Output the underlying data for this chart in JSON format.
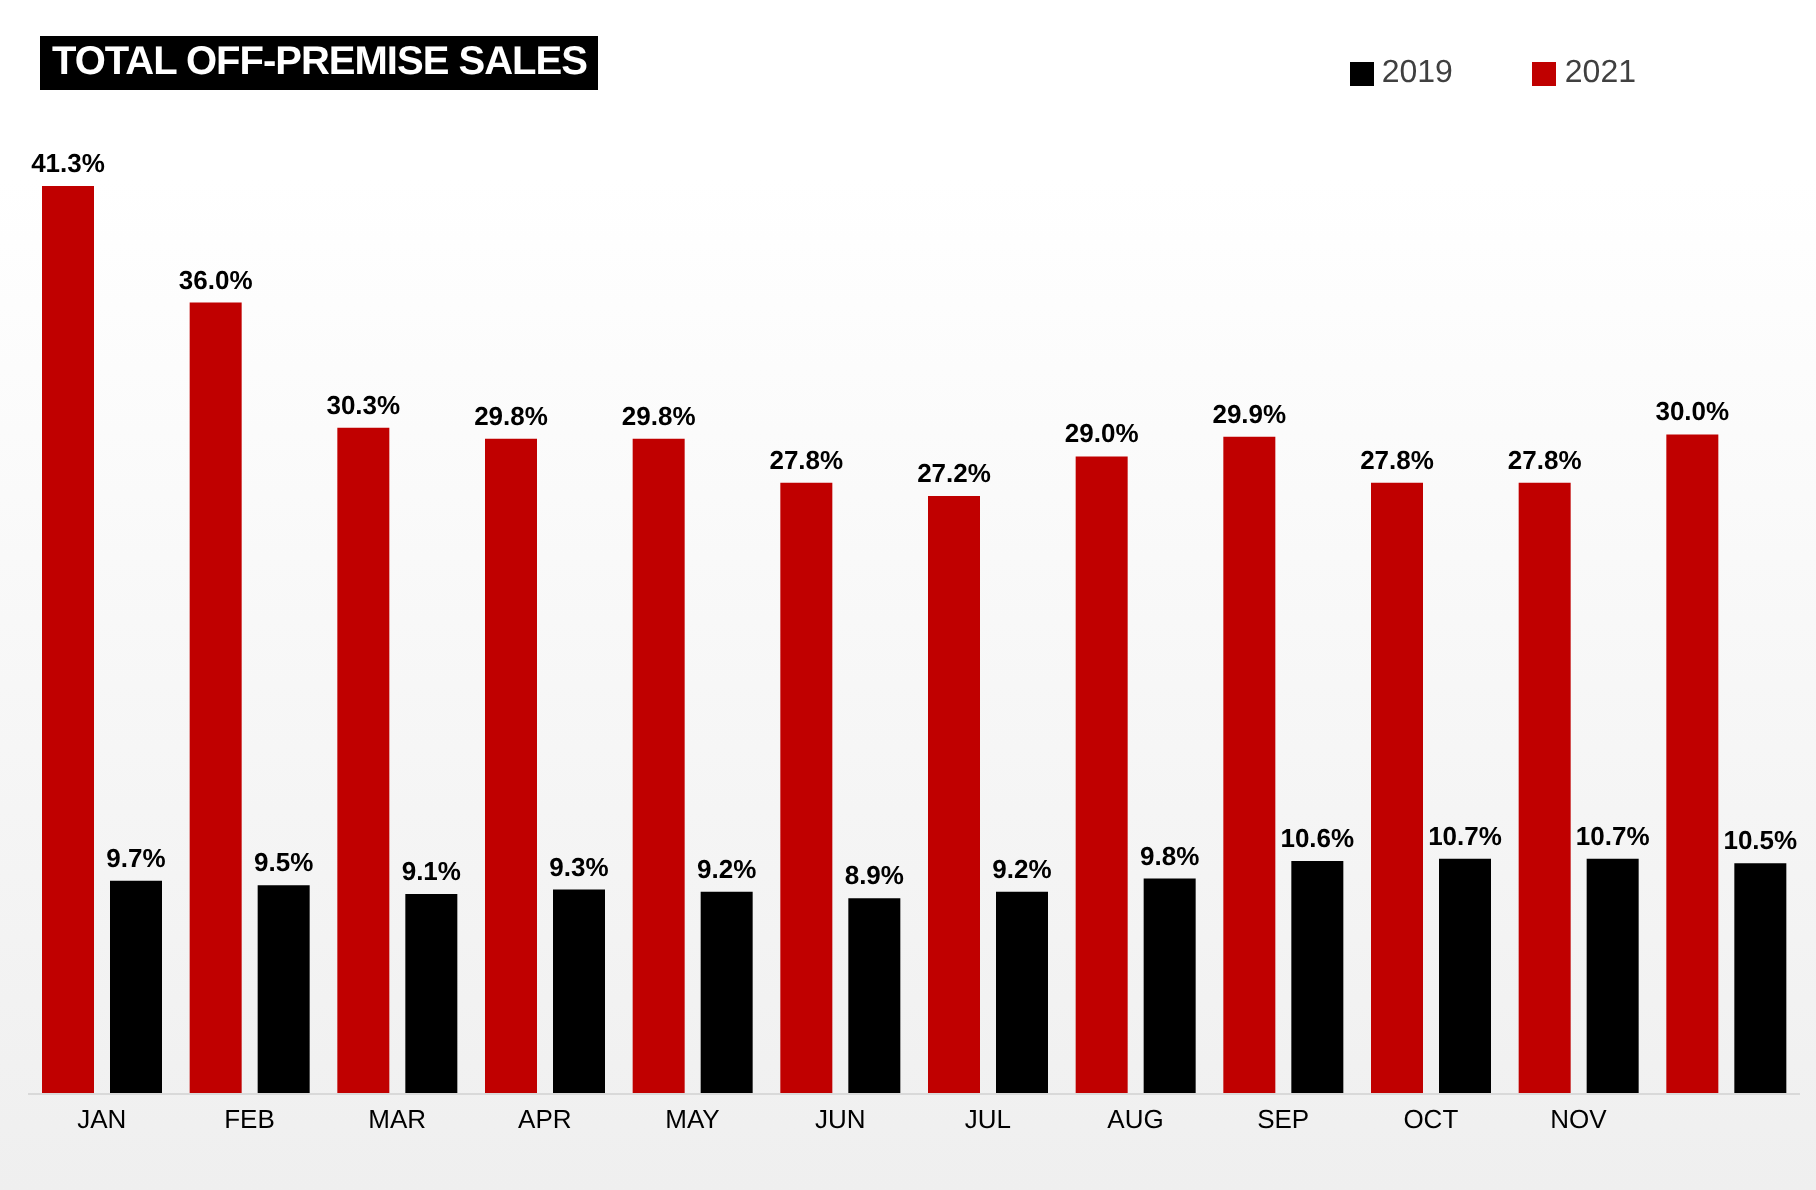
{
  "chart_data": {
    "type": "bar",
    "title": "TOTAL OFF-PREMISE SALES",
    "categories": [
      "JAN",
      "FEB",
      "MAR",
      "APR",
      "MAY",
      "JUN",
      "JUL",
      "AUG",
      "SEP",
      "OCT",
      "NOV",
      null
    ],
    "series": [
      {
        "name": "2021",
        "color": "#c00000",
        "values": [
          41.3,
          36.0,
          30.3,
          29.8,
          29.8,
          27.8,
          27.2,
          29.0,
          29.9,
          27.8,
          27.8,
          30.0
        ],
        "value_labels": [
          "41.3%",
          "36.0%",
          "30.3%",
          "29.8%",
          "29.8%",
          "27.8%",
          "27.2%",
          "29.0%",
          "29.9%",
          "27.8%",
          "27.8%",
          "30.0%"
        ]
      },
      {
        "name": "2019",
        "color": "#000000",
        "values": [
          9.7,
          9.5,
          9.1,
          9.3,
          9.2,
          8.9,
          9.2,
          9.8,
          10.6,
          10.7,
          10.7,
          10.5
        ],
        "value_labels": [
          "9.7%",
          "9.5%",
          "9.1%",
          "9.3%",
          "9.2%",
          "8.9%",
          "9.2%",
          "9.8%",
          "10.6%",
          "10.7%",
          "10.7%",
          "10.5%"
        ]
      }
    ],
    "legend": "top right",
    "grid": false
  }
}
